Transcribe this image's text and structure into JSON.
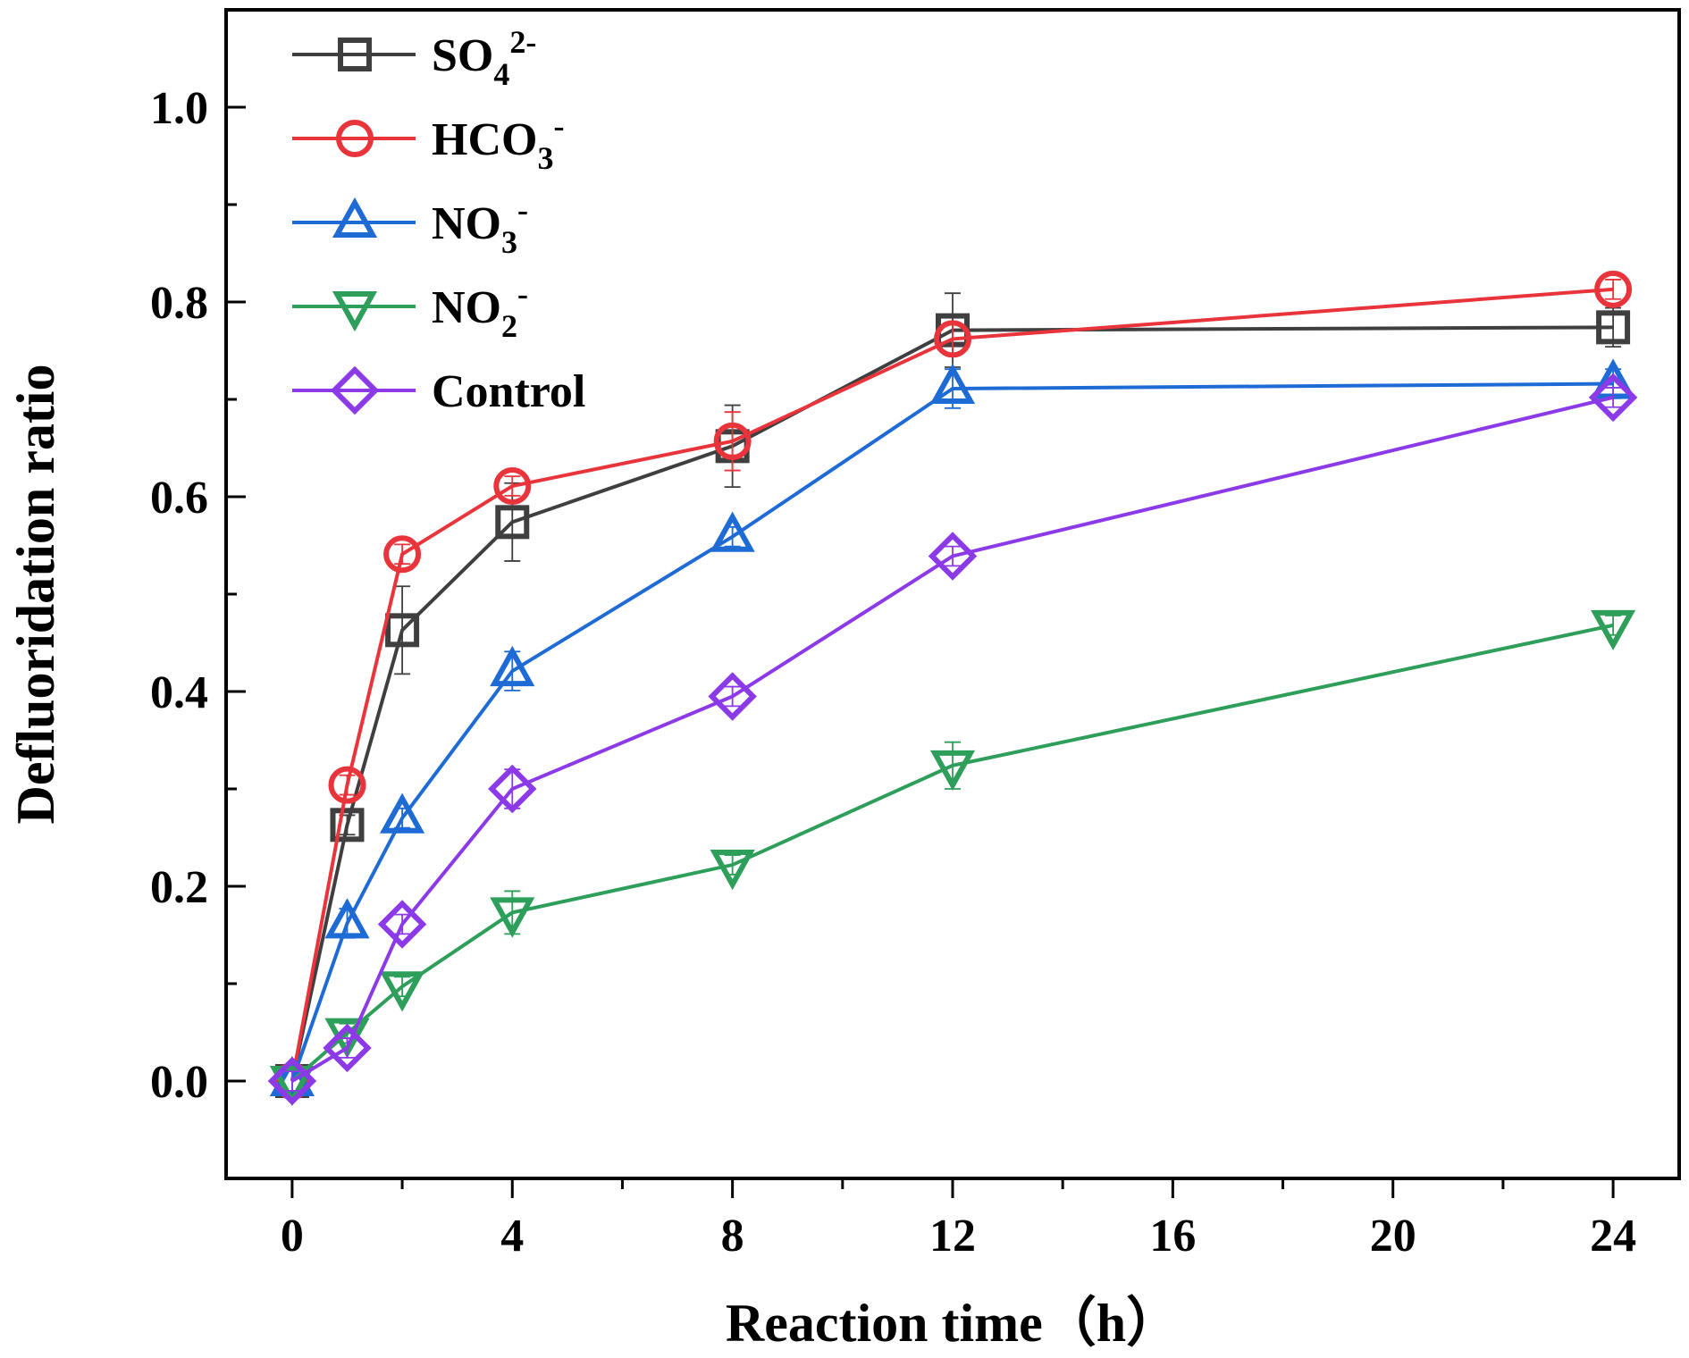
{
  "chart_data": {
    "type": "line",
    "title": "",
    "xlabel": "Reaction time（h）",
    "ylabel": "Defluoridation ratio",
    "xlim": [
      -1.2,
      25.2
    ],
    "ylim": [
      -0.1,
      1.1
    ],
    "xticks": [
      0,
      4,
      8,
      12,
      16,
      20,
      24
    ],
    "xtick_labels": [
      "0",
      "4",
      "8",
      "12",
      "16",
      "20",
      "24"
    ],
    "yticks": [
      0.0,
      0.2,
      0.4,
      0.6,
      0.8,
      1.0
    ],
    "ytick_labels": [
      "0.0",
      "0.2",
      "0.4",
      "0.6",
      "0.8",
      "1.0"
    ],
    "grid": false,
    "legend_position": "top-left",
    "x": [
      0,
      1,
      2,
      4,
      8,
      12,
      24
    ],
    "series": [
      {
        "name": "SO4 2-",
        "label_main": "SO",
        "label_sub": "4",
        "label_sup": "2-",
        "color": "#3f3f3f",
        "marker": "square",
        "values": [
          0.0,
          0.263,
          0.463,
          0.574,
          0.652,
          0.771,
          0.774
        ],
        "errors": [
          0.01,
          0.01,
          0.045,
          0.04,
          0.042,
          0.038,
          0.02
        ]
      },
      {
        "name": "HCO3 -",
        "label_main": "HCO",
        "label_sub": "3",
        "label_sup": "-",
        "color": "#e8343a",
        "marker": "circle",
        "values": [
          0.0,
          0.304,
          0.541,
          0.611,
          0.657,
          0.762,
          0.813
        ],
        "errors": [
          0.01,
          0.01,
          0.01,
          0.01,
          0.03,
          0.015,
          0.01
        ]
      },
      {
        "name": "NO3 -",
        "label_main": "NO",
        "label_sub": "3",
        "label_sup": "-",
        "color": "#1f6bd6",
        "marker": "triangle-up",
        "values": [
          0.0,
          0.162,
          0.27,
          0.421,
          0.559,
          0.711,
          0.716
        ],
        "errors": [
          0.01,
          0.015,
          0.01,
          0.02,
          0.01,
          0.02,
          0.015
        ]
      },
      {
        "name": "NO2 -",
        "label_main": "NO",
        "label_sub": "2",
        "label_sup": "-",
        "color": "#2e9e5b",
        "marker": "triangle-down",
        "values": [
          0.0,
          0.049,
          0.097,
          0.173,
          0.222,
          0.324,
          0.468
        ],
        "errors": [
          0.01,
          0.01,
          0.01,
          0.022,
          0.01,
          0.024,
          0.01
        ]
      },
      {
        "name": "Control",
        "label_main": "Control",
        "label_sub": "",
        "label_sup": "",
        "color": "#8c3ae8",
        "marker": "diamond",
        "values": [
          0.0,
          0.034,
          0.161,
          0.3,
          0.395,
          0.539,
          0.702
        ],
        "errors": [
          0.01,
          0.01,
          0.01,
          0.02,
          0.01,
          0.01,
          0.01
        ]
      }
    ]
  }
}
